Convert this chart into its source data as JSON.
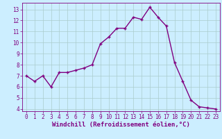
{
  "x": [
    0,
    1,
    2,
    3,
    4,
    5,
    6,
    7,
    8,
    9,
    10,
    11,
    12,
    13,
    14,
    15,
    16,
    17,
    18,
    19,
    20,
    21,
    22,
    23
  ],
  "y": [
    7.0,
    6.5,
    7.0,
    6.0,
    7.3,
    7.3,
    7.5,
    7.7,
    8.0,
    9.9,
    10.5,
    11.3,
    11.3,
    12.3,
    12.1,
    13.2,
    12.3,
    11.5,
    8.2,
    6.5,
    4.8,
    4.2,
    4.1,
    4.0
  ],
  "line_color": "#800080",
  "marker": "+",
  "marker_size": 3,
  "bg_color": "#cceeff",
  "grid_color": "#aacccc",
  "xlabel": "Windchill (Refroidissement éolien,°C)",
  "xlabel_color": "#800080",
  "ylim": [
    3.8,
    13.6
  ],
  "xlim": [
    -0.5,
    23.5
  ],
  "yticks": [
    4,
    5,
    6,
    7,
    8,
    9,
    10,
    11,
    12,
    13
  ],
  "xticks": [
    0,
    1,
    2,
    3,
    4,
    5,
    6,
    7,
    8,
    9,
    10,
    11,
    12,
    13,
    14,
    15,
    16,
    17,
    18,
    19,
    20,
    21,
    22,
    23
  ],
  "tick_color": "#800080",
  "spine_color": "#800080",
  "linewidth": 1.0,
  "tick_labelsize": 5.5,
  "xlabel_fontsize": 6.5
}
